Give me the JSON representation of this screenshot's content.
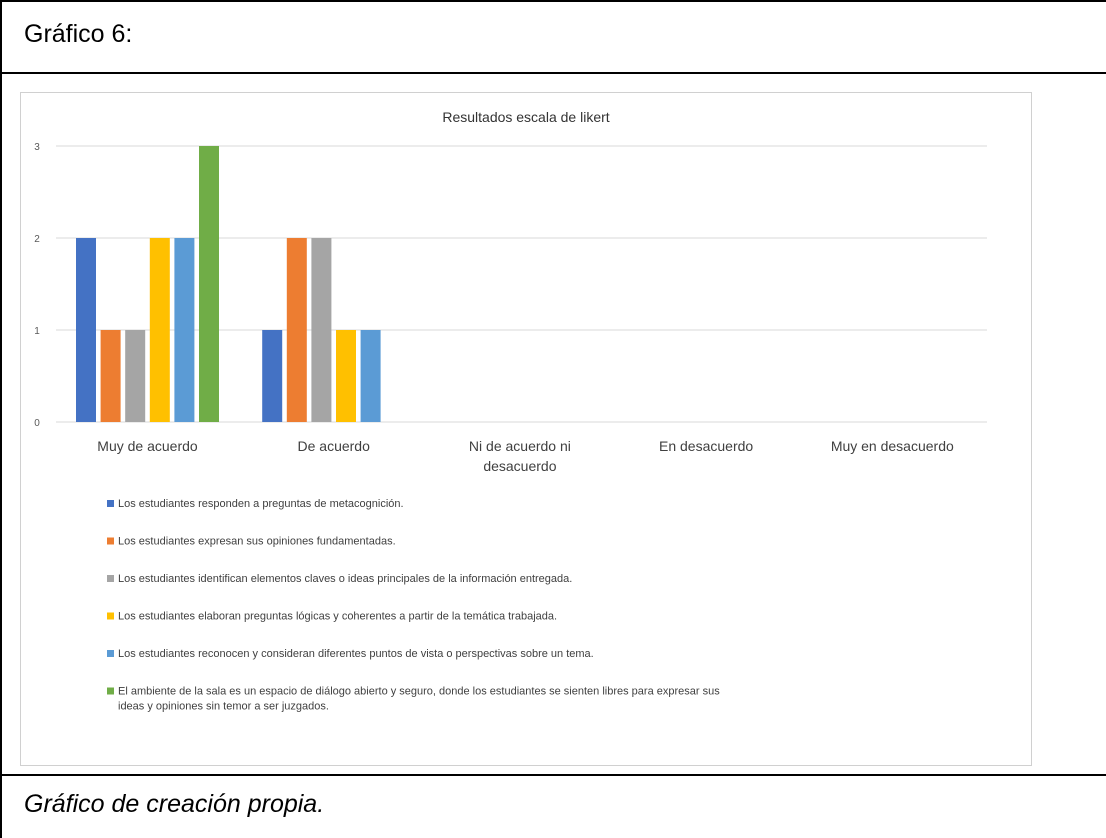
{
  "header": {
    "title": "Gráfico 6:"
  },
  "footer": {
    "caption": "Gráfico de creación propia."
  },
  "chart_data": {
    "type": "bar",
    "title": "Resultados escala de likert",
    "xlabel": "",
    "ylabel": "",
    "ylim": [
      0,
      3
    ],
    "yticks": [
      "0",
      "1",
      "2",
      "3"
    ],
    "grid": true,
    "legend_position": "bottom",
    "categories": [
      [
        "Muy de acuerdo"
      ],
      [
        "De acuerdo"
      ],
      [
        "Ni de acuerdo ni",
        "desacuerdo"
      ],
      [
        "En desacuerdo"
      ],
      [
        "Muy en desacuerdo"
      ]
    ],
    "series": [
      {
        "name": "Los estudiantes responden a preguntas de metacognición.",
        "color": "#4472C4",
        "values": [
          2,
          1,
          0,
          0,
          0
        ]
      },
      {
        "name": "Los estudiantes expresan sus opiniones fundamentadas.",
        "color": "#ED7D31",
        "values": [
          1,
          2,
          0,
          0,
          0
        ]
      },
      {
        "name": "Los estudiantes identifican elementos claves o ideas principales de la información entregada.",
        "color": "#A5A5A5",
        "values": [
          1,
          2,
          0,
          0,
          0
        ]
      },
      {
        "name": "Los estudiantes elaboran preguntas lógicas y coherentes a partir de la temática trabajada.",
        "color": "#FFC000",
        "values": [
          2,
          1,
          0,
          0,
          0
        ]
      },
      {
        "name": "Los estudiantes reconocen y consideran diferentes puntos de vista o perspectivas sobre un tema.",
        "color": "#5B9BD5",
        "values": [
          2,
          1,
          0,
          0,
          0
        ]
      },
      {
        "name": [
          "El ambiente de la sala es un espacio de diálogo abierto y seguro, donde los estudiantes se sienten libres para expresar sus",
          "ideas y opiniones sin temor a ser juzgados."
        ],
        "color": "#70AD47",
        "values": [
          3,
          0,
          0,
          0,
          0
        ]
      }
    ]
  }
}
